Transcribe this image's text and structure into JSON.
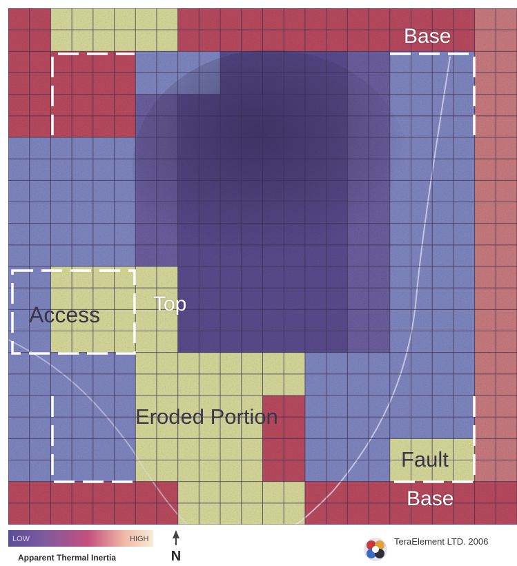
{
  "map": {
    "labels": {
      "base_top": "Base",
      "access": "Access",
      "top": "Top",
      "eroded_portion": "Eroded Portion",
      "fault": "Fault",
      "base_bottom": "Base"
    },
    "zone_colors": {
      "purple_dark": "#584b8c",
      "purple_mid": "#6a5e9d",
      "blue_lav": "#7f86bf",
      "red": "#b84a5e",
      "yellow": "#d6d89a"
    },
    "cell_grid": [
      "RYYYRRRRRRRO",
      "RRRBBPPPPBBO",
      "RRRPPPPPPBBO",
      "BBBPPPPPPBBO",
      "BBBPPPPPPBBO",
      "BBBPPPPPPBBO",
      "BYYYPPPPPBBO",
      "BYYYPPPPPBBO",
      "BBBYYYYBBBBO",
      "BBBYYYRBBBBO",
      "BBBYYYRBBYYO",
      "RRRRYYYRRRRR"
    ]
  },
  "legend": {
    "low_label": "LOW",
    "high_label": "HIGH",
    "title": "Apparent Thermal Inertia",
    "gradient_colors": [
      "#5b4d97",
      "#7e5aa0",
      "#c44f7c",
      "#f1b8a8",
      "#f7ecd6"
    ]
  },
  "north_arrow": {
    "label": "N"
  },
  "brand": {
    "copyright": "TeraElement LTD. 2006"
  }
}
